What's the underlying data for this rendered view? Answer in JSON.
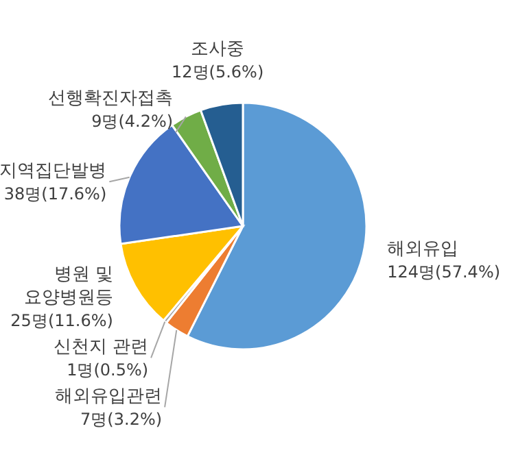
{
  "chart_data": {
    "type": "pie",
    "categories": [
      "해외유입",
      "해외유입관련",
      "신천지 관련",
      "병원 및\n요양병원등",
      "지역집단발병",
      "선행확진자접촉",
      "조사중"
    ],
    "values": [
      124,
      7,
      1,
      25,
      38,
      9,
      12
    ],
    "value_labels": [
      "124명(57.4%)",
      "7명(3.2%)",
      "1명(0.5%)",
      "25명(11.6%)",
      "38명(17.6%)",
      "9명(4.2%)",
      "12명(5.6%)"
    ],
    "colors": [
      "#5b9bd5",
      "#ed7d31",
      "#a5a5a5",
      "#ffc000",
      "#4472c4",
      "#70ad47",
      "#255e91"
    ]
  }
}
